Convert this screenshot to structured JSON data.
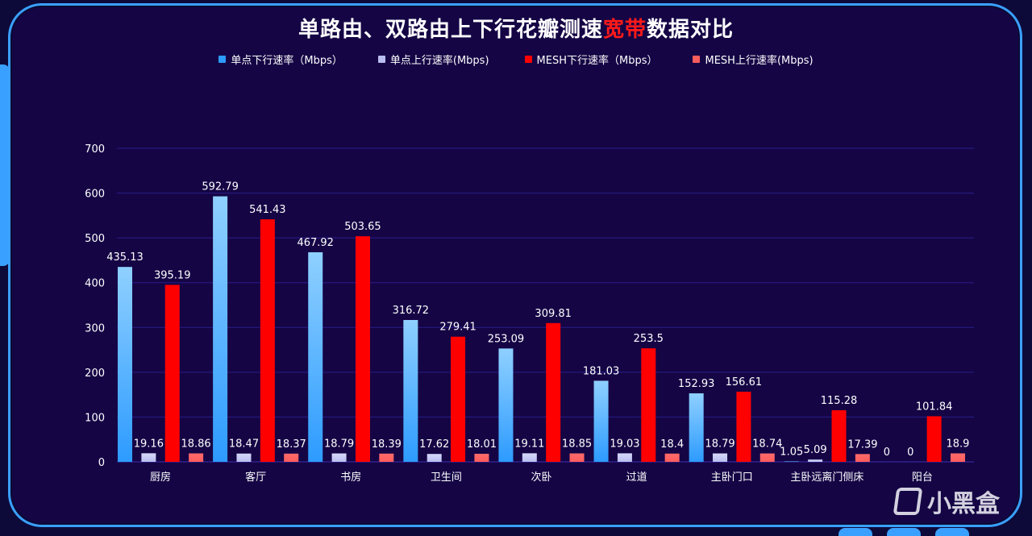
{
  "title_parts": {
    "before": "单路由、双路由上下行花瓣测速",
    "highlight": "宽带",
    "after": "数据对比"
  },
  "colors": {
    "bg": "#150545",
    "border": "#3aa0ff",
    "grid": "#2a1d8a",
    "axis_text": "#ffffff",
    "highlight": "#ff1a1a"
  },
  "watermark": "小黑盒",
  "chart_data": {
    "type": "bar",
    "categories": [
      "厨房",
      "客厅",
      "书房",
      "卫生间",
      "次卧",
      "过道",
      "主卧门口",
      "主卧远离门侧床",
      "阳台"
    ],
    "ylim": [
      0,
      700
    ],
    "yticks": [
      0,
      100,
      200,
      300,
      400,
      500,
      600,
      700
    ],
    "grid": true,
    "legend_position": "top-center",
    "series": [
      {
        "name": "单点下行速率（Mbps）",
        "color": "#2d9bff",
        "color_top": "#8fd0ff",
        "values": [
          435.13,
          592.79,
          467.92,
          316.72,
          253.09,
          181.03,
          152.93,
          1.05,
          0
        ],
        "labels": [
          "435.13",
          "592.79",
          "467.92",
          "316.72",
          "253.09",
          "181.03",
          "152.93",
          "1.05",
          "0"
        ]
      },
      {
        "name": "单点上行速率(Mbps)",
        "color": "#b9bdf0",
        "color_top": "#d6d8fa",
        "values": [
          19.16,
          18.47,
          18.79,
          17.62,
          19.11,
          19.03,
          18.79,
          5.09,
          0
        ],
        "labels": [
          "19.16",
          "18.47",
          "18.79",
          "17.62",
          "19.11",
          "19.03",
          "18.79",
          "5.09",
          "0"
        ]
      },
      {
        "name": "MESH下行速率（Mbps）",
        "color": "#ff0000",
        "color_top": "#ff0000",
        "values": [
          395.19,
          541.43,
          503.65,
          279.41,
          309.81,
          253.5,
          156.61,
          115.28,
          101.84
        ],
        "labels": [
          "395.19",
          "541.43",
          "503.65",
          "279.41",
          "309.81",
          "253.5",
          "156.61",
          "115.28",
          "101.84"
        ]
      },
      {
        "name": "MESH上行速率(Mbps)",
        "color": "#ff5c5c",
        "color_top": "#ff6b6b",
        "values": [
          18.86,
          18.37,
          18.39,
          18.01,
          18.85,
          18.4,
          18.74,
          17.39,
          18.9
        ],
        "labels": [
          "18.86",
          "18.37",
          "18.39",
          "18.01",
          "18.85",
          "18.4",
          "18.74",
          "17.39",
          "18.9"
        ]
      }
    ]
  }
}
